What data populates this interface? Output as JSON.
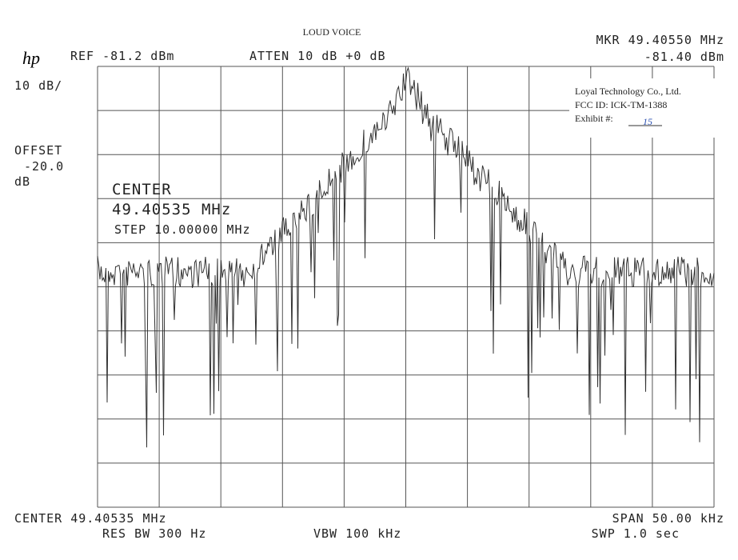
{
  "header": {
    "note": "LOUD VOICE",
    "logo": "hp",
    "ref": "REF -81.2 dBm",
    "atten": "ATTEN 10 dB +0 dB",
    "marker_freq": "MKR 49.40550 MHz",
    "marker_level": "-81.40 dBm"
  },
  "left": {
    "scale": "10 dB/",
    "offset_label": "OFFSET",
    "offset_value": "-20.0",
    "offset_unit": "dB"
  },
  "overlay": {
    "center_label": "CENTER",
    "center_freq": "49.40535 MHz",
    "step": "STEP 10.00000 MHz"
  },
  "stamp": {
    "company": "Loyal Technology Co., Ltd.",
    "fcc_id": "FCC ID:  ICK-TM-1388",
    "exhibit_label": "Exhibit #:",
    "exhibit_number": "15"
  },
  "footer": {
    "center": "CENTER 49.40535 MHz",
    "res_bw": "RES BW 300 Hz",
    "vbw": "VBW 100 kHz",
    "span": "SPAN 50.00 kHz",
    "sweep": "SWP 1.0  sec"
  }
}
